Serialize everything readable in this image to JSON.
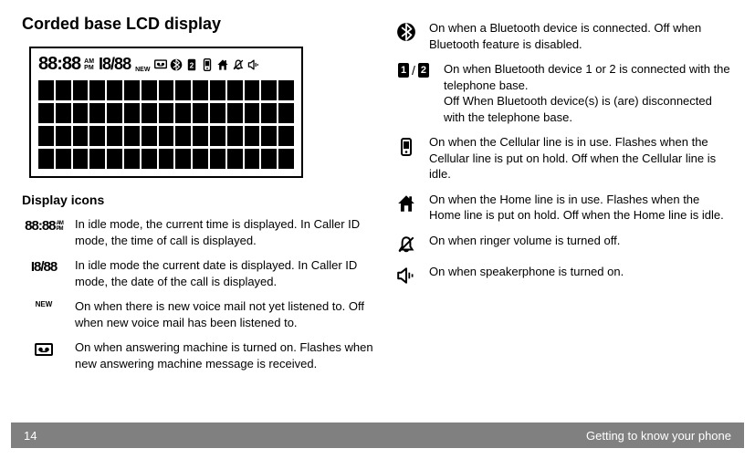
{
  "title": "Corded base LCD display",
  "subhead": "Display icons",
  "lcd": {
    "time": "88:88",
    "am": "AM",
    "pm": "PM",
    "date": "I8/88",
    "new": "NEW",
    "rows": 4,
    "cols": 15
  },
  "left": [
    {
      "key": "time",
      "text": "In idle mode, the current time is displayed. In Caller ID mode, the time of call is displayed."
    },
    {
      "key": "date",
      "text": "In idle mode the current date is displayed. In Caller ID mode, the date of the call is displayed."
    },
    {
      "key": "new",
      "text": "On when there is new voice mail not yet listened to. Off when new voice mail has been listened to."
    },
    {
      "key": "tape",
      "text": "On when answering machine is turned on. Flashes when new answering machine message is received."
    }
  ],
  "right": [
    {
      "key": "bt",
      "text": "On when a Bluetooth device is connected. Off when Bluetooth feature is disabled."
    },
    {
      "key": "bt12",
      "text": "On when Bluetooth device 1 or 2 is connected with the telephone base.",
      "text2": "Off When Bluetooth device(s) is (are) disconnected with the telephone base."
    },
    {
      "key": "cell",
      "text": "On when the Cellular line is in use. Flashes when the Cellular line is put on hold. Off when the Cellular line is idle."
    },
    {
      "key": "home",
      "text": "On when the Home line is in use. Flashes when the Home line is put on hold. Off when the Home line is idle."
    },
    {
      "key": "ringer",
      "text": "On when ringer volume is turned off."
    },
    {
      "key": "spk",
      "text": "On when speakerphone is turned on."
    }
  ],
  "footer": {
    "page": "14",
    "section": "Getting to know your phone"
  }
}
